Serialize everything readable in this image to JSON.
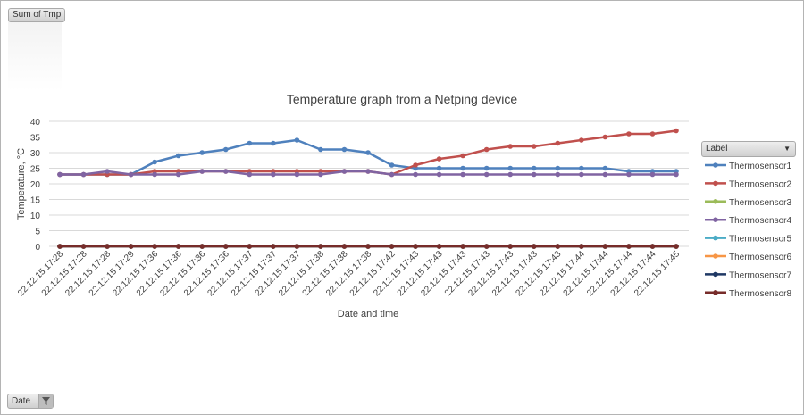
{
  "pivot": {
    "sum_button": "Sum of Tmp",
    "date_button": "Date",
    "label_button": "Label"
  },
  "chart_data": {
    "type": "line",
    "title": "Temperature  graph from a Netping device",
    "xlabel": "Date and time",
    "ylabel": "Temperature, °C",
    "ylim": [
      0,
      40
    ],
    "yticks": [
      0,
      5,
      10,
      15,
      20,
      25,
      30,
      35,
      40
    ],
    "grid": true,
    "legend_position": "right",
    "categories": [
      "22.12.15 17:28",
      "22.12.15 17:28",
      "22.12.15 17:28",
      "22.12.15 17:29",
      "22.12.15 17:36",
      "22.12.15 17:36",
      "22.12.15 17:36",
      "22.12.15 17:36",
      "22.12.15 17:37",
      "22.12.15 17:37",
      "22.12.15 17:37",
      "22.12.15 17:38",
      "22.12.15 17:38",
      "22.12.15 17:38",
      "22.12.15 17:42",
      "22.12.15 17:43",
      "22.12.15 17:43",
      "22.12.15 17:43",
      "22.12.15 17:43",
      "22.12.15 17:43",
      "22.12.15 17:43",
      "22.12.15 17:43",
      "22.12.15 17:44",
      "22.12.15 17:44",
      "22.12.15 17:44",
      "22.12.15 17:44",
      "22.12.15 17:45"
    ],
    "series": [
      {
        "name": "Thermosensor1",
        "color": "#4f81bd",
        "values": [
          23,
          23,
          23,
          23,
          27,
          29,
          30,
          31,
          33,
          33,
          34,
          31,
          31,
          30,
          26,
          25,
          25,
          25,
          25,
          25,
          25,
          25,
          25,
          25,
          24,
          24,
          24
        ]
      },
      {
        "name": "Thermosensor2",
        "color": "#c0504d",
        "values": [
          23,
          23,
          23,
          23,
          24,
          24,
          24,
          24,
          24,
          24,
          24,
          24,
          24,
          24,
          23,
          26,
          28,
          29,
          31,
          32,
          32,
          33,
          34,
          35,
          36,
          36,
          37
        ]
      },
      {
        "name": "Thermosensor3",
        "color": "#9bbb59",
        "values": [
          0,
          0,
          0,
          0,
          0,
          0,
          0,
          0,
          0,
          0,
          0,
          0,
          0,
          0,
          0,
          0,
          0,
          0,
          0,
          0,
          0,
          0,
          0,
          0,
          0,
          0,
          0
        ]
      },
      {
        "name": "Thermosensor4",
        "color": "#8064a2",
        "values": [
          23,
          23,
          24,
          23,
          23,
          23,
          24,
          24,
          23,
          23,
          23,
          23,
          24,
          24,
          23,
          23,
          23,
          23,
          23,
          23,
          23,
          23,
          23,
          23,
          23,
          23,
          23
        ]
      },
      {
        "name": "Thermosensor5",
        "color": "#4bacc6",
        "values": [
          0,
          0,
          0,
          0,
          0,
          0,
          0,
          0,
          0,
          0,
          0,
          0,
          0,
          0,
          0,
          0,
          0,
          0,
          0,
          0,
          0,
          0,
          0,
          0,
          0,
          0,
          0
        ]
      },
      {
        "name": "Thermosensor6",
        "color": "#f79646",
        "values": [
          0,
          0,
          0,
          0,
          0,
          0,
          0,
          0,
          0,
          0,
          0,
          0,
          0,
          0,
          0,
          0,
          0,
          0,
          0,
          0,
          0,
          0,
          0,
          0,
          0,
          0,
          0
        ]
      },
      {
        "name": "Thermosensor7",
        "color": "#1f3864",
        "values": [
          0,
          0,
          0,
          0,
          0,
          0,
          0,
          0,
          0,
          0,
          0,
          0,
          0,
          0,
          0,
          0,
          0,
          0,
          0,
          0,
          0,
          0,
          0,
          0,
          0,
          0,
          0
        ]
      },
      {
        "name": "Thermosensor8",
        "color": "#772c2a",
        "values": [
          0,
          0,
          0,
          0,
          0,
          0,
          0,
          0,
          0,
          0,
          0,
          0,
          0,
          0,
          0,
          0,
          0,
          0,
          0,
          0,
          0,
          0,
          0,
          0,
          0,
          0,
          0
        ]
      }
    ]
  }
}
